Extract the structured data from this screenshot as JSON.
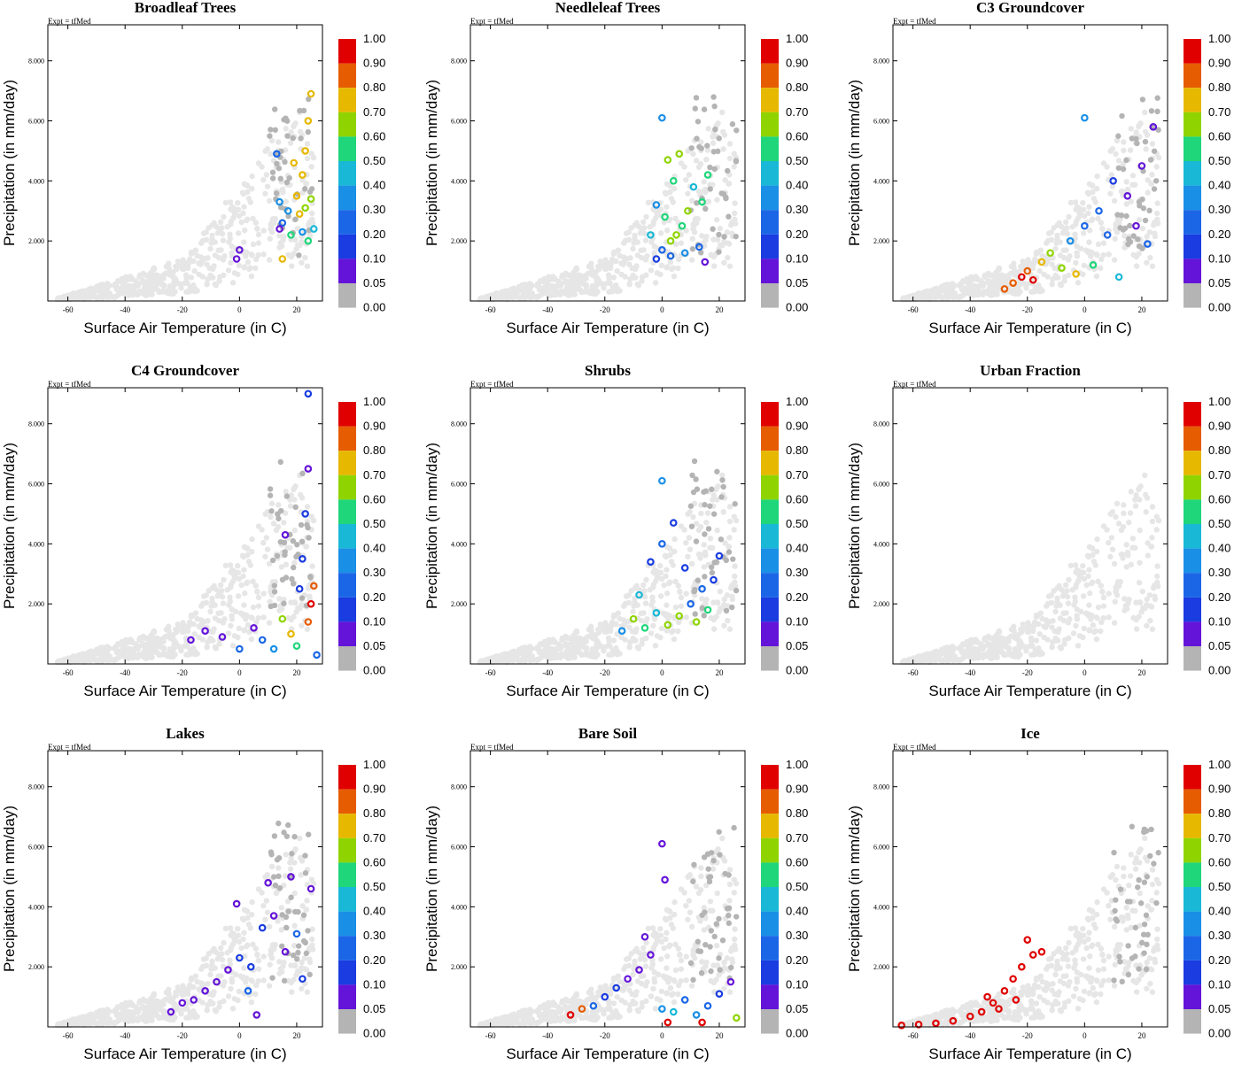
{
  "figure": {
    "expt_label": "Expt = tfMed",
    "xlabel": "Surface Air Temperature (in C)",
    "ylabel": "Precipitation (in mm/day)"
  },
  "colorbar": {
    "labels": [
      "1.00",
      "0.90",
      "0.80",
      "0.70",
      "0.60",
      "0.50",
      "0.40",
      "0.30",
      "0.20",
      "0.10",
      "0.05",
      "0.00"
    ],
    "colors": [
      "#e00000",
      "#e65c00",
      "#e6b800",
      "#8fd400",
      "#1fd67a",
      "#19b8d6",
      "#198fe6",
      "#1a66e6",
      "#1a3ce0",
      "#6414d8",
      "#b4b4b4"
    ]
  },
  "colors": {
    "background_points": "#e6e6e6",
    "zero_points": "#b4b4b4",
    "frame": "#000000"
  },
  "chart_data": [
    {
      "type": "scatter",
      "title": "Broadleaf Trees",
      "xlim": [
        -67,
        29
      ],
      "ylim": [
        0,
        9.2
      ],
      "xticks": [
        -60,
        -40,
        -20,
        0,
        20
      ],
      "yticks": [
        "2.000",
        "4.000",
        "6.000",
        "8.000"
      ],
      "colored_points": [
        {
          "x": 20,
          "y": 3.5,
          "v": 0.8
        },
        {
          "x": 22,
          "y": 4.2,
          "v": 0.8
        },
        {
          "x": 23,
          "y": 5.0,
          "v": 0.8
        },
        {
          "x": 24,
          "y": 6.0,
          "v": 0.8
        },
        {
          "x": 25,
          "y": 6.9,
          "v": 0.8
        },
        {
          "x": 21,
          "y": 2.9,
          "v": 0.8
        },
        {
          "x": 19,
          "y": 4.6,
          "v": 0.8
        },
        {
          "x": 23,
          "y": 3.1,
          "v": 0.7
        },
        {
          "x": 25,
          "y": 3.4,
          "v": 0.7
        },
        {
          "x": 17,
          "y": 3.0,
          "v": 0.4
        },
        {
          "x": 14,
          "y": 3.3,
          "v": 0.4
        },
        {
          "x": 22,
          "y": 2.3,
          "v": 0.4
        },
        {
          "x": 26,
          "y": 2.4,
          "v": 0.5
        },
        {
          "x": 15,
          "y": 2.6,
          "v": 0.2
        },
        {
          "x": 13,
          "y": 4.9,
          "v": 0.2
        },
        {
          "x": 18,
          "y": 2.2,
          "v": 0.6
        },
        {
          "x": 24,
          "y": 2.0,
          "v": 0.6
        },
        {
          "x": 14,
          "y": 2.4,
          "v": 0.05
        },
        {
          "x": 0,
          "y": 1.7,
          "v": 0.05
        },
        {
          "x": -1,
          "y": 1.4,
          "v": 0.05
        },
        {
          "x": 15,
          "y": 1.4,
          "v": 0.8
        }
      ]
    },
    {
      "type": "scatter",
      "title": "Needleleaf Trees",
      "xlim": [
        -67,
        29
      ],
      "ylim": [
        0,
        9.2
      ],
      "xticks": [
        -60,
        -40,
        -20,
        0,
        20
      ],
      "yticks": [
        "2.000",
        "4.000",
        "6.000",
        "8.000"
      ],
      "colored_points": [
        {
          "x": 5,
          "y": 2.2,
          "v": 0.7
        },
        {
          "x": 3,
          "y": 2.0,
          "v": 0.7
        },
        {
          "x": 7,
          "y": 2.5,
          "v": 0.6
        },
        {
          "x": 1,
          "y": 2.8,
          "v": 0.6
        },
        {
          "x": 9,
          "y": 3.0,
          "v": 0.7
        },
        {
          "x": 4,
          "y": 4.0,
          "v": 0.6
        },
        {
          "x": 2,
          "y": 4.7,
          "v": 0.7
        },
        {
          "x": 6,
          "y": 4.9,
          "v": 0.7
        },
        {
          "x": 11,
          "y": 3.8,
          "v": 0.5
        },
        {
          "x": 14,
          "y": 3.3,
          "v": 0.6
        },
        {
          "x": -2,
          "y": 3.2,
          "v": 0.4
        },
        {
          "x": -4,
          "y": 2.2,
          "v": 0.5
        },
        {
          "x": 0,
          "y": 1.7,
          "v": 0.3
        },
        {
          "x": 3,
          "y": 1.5,
          "v": 0.2
        },
        {
          "x": -2,
          "y": 1.4,
          "v": 0.1
        },
        {
          "x": 8,
          "y": 1.6,
          "v": 0.4
        },
        {
          "x": 13,
          "y": 1.8,
          "v": 0.3
        },
        {
          "x": 15,
          "y": 1.3,
          "v": 0.05
        },
        {
          "x": 0,
          "y": 6.1,
          "v": 0.4
        },
        {
          "x": 16,
          "y": 4.2,
          "v": 0.6
        }
      ]
    },
    {
      "type": "scatter",
      "title": "C3 Groundcover",
      "xlim": [
        -67,
        29
      ],
      "ylim": [
        0,
        9.2
      ],
      "xticks": [
        -60,
        -40,
        -20,
        0,
        20
      ],
      "yticks": [
        "2.000",
        "4.000",
        "6.000",
        "8.000"
      ],
      "colored_points": [
        {
          "x": -25,
          "y": 0.6,
          "v": 0.9
        },
        {
          "x": -22,
          "y": 0.8,
          "v": 1.0
        },
        {
          "x": -20,
          "y": 1.0,
          "v": 0.9
        },
        {
          "x": -18,
          "y": 0.7,
          "v": 1.0
        },
        {
          "x": -28,
          "y": 0.4,
          "v": 0.9
        },
        {
          "x": -15,
          "y": 1.3,
          "v": 0.8
        },
        {
          "x": -12,
          "y": 1.6,
          "v": 0.7
        },
        {
          "x": -8,
          "y": 1.1,
          "v": 0.7
        },
        {
          "x": -5,
          "y": 2.0,
          "v": 0.4
        },
        {
          "x": 0,
          "y": 2.5,
          "v": 0.3
        },
        {
          "x": 3,
          "y": 1.2,
          "v": 0.6
        },
        {
          "x": 5,
          "y": 3.0,
          "v": 0.2
        },
        {
          "x": 8,
          "y": 2.2,
          "v": 0.2
        },
        {
          "x": 10,
          "y": 4.0,
          "v": 0.1
        },
        {
          "x": 15,
          "y": 3.5,
          "v": 0.05
        },
        {
          "x": 18,
          "y": 2.5,
          "v": 0.05
        },
        {
          "x": 20,
          "y": 4.5,
          "v": 0.05
        },
        {
          "x": 22,
          "y": 1.9,
          "v": 0.2
        },
        {
          "x": 12,
          "y": 0.8,
          "v": 0.5
        },
        {
          "x": -3,
          "y": 0.9,
          "v": 0.8
        },
        {
          "x": 0,
          "y": 6.1,
          "v": 0.4
        },
        {
          "x": 24,
          "y": 5.8,
          "v": 0.05
        }
      ]
    },
    {
      "type": "scatter",
      "title": "C4 Groundcover",
      "xlim": [
        -67,
        29
      ],
      "ylim": [
        0,
        9.2
      ],
      "xticks": [
        -60,
        -40,
        -20,
        0,
        20
      ],
      "yticks": [
        "2.000",
        "4.000",
        "6.000",
        "8.000"
      ],
      "colored_points": [
        {
          "x": 22,
          "y": 3.5,
          "v": 0.1
        },
        {
          "x": 23,
          "y": 5.0,
          "v": 0.1
        },
        {
          "x": 24,
          "y": 6.5,
          "v": 0.05
        },
        {
          "x": 21,
          "y": 2.5,
          "v": 0.1
        },
        {
          "x": 25,
          "y": 2.0,
          "v": 1.0
        },
        {
          "x": 26,
          "y": 2.6,
          "v": 0.9
        },
        {
          "x": 24,
          "y": 1.4,
          "v": 0.9
        },
        {
          "x": 18,
          "y": 1.0,
          "v": 0.8
        },
        {
          "x": 15,
          "y": 1.5,
          "v": 0.7
        },
        {
          "x": 20,
          "y": 0.6,
          "v": 0.6
        },
        {
          "x": 12,
          "y": 0.5,
          "v": 0.4
        },
        {
          "x": 8,
          "y": 0.8,
          "v": 0.2
        },
        {
          "x": 5,
          "y": 1.2,
          "v": 0.05
        },
        {
          "x": 0,
          "y": 0.5,
          "v": 0.2
        },
        {
          "x": -6,
          "y": 0.9,
          "v": 0.05
        },
        {
          "x": -12,
          "y": 1.1,
          "v": 0.05
        },
        {
          "x": -17,
          "y": 0.8,
          "v": 0.05
        },
        {
          "x": 16,
          "y": 4.3,
          "v": 0.05
        },
        {
          "x": 27,
          "y": 0.3,
          "v": 0.2
        },
        {
          "x": 24,
          "y": 9.0,
          "v": 0.1
        }
      ]
    },
    {
      "type": "scatter",
      "title": "Shrubs",
      "xlim": [
        -67,
        29
      ],
      "ylim": [
        0,
        9.2
      ],
      "xticks": [
        -60,
        -40,
        -20,
        0,
        20
      ],
      "yticks": [
        "2.000",
        "4.000",
        "6.000",
        "8.000"
      ],
      "colored_points": [
        {
          "x": -10,
          "y": 1.5,
          "v": 0.7
        },
        {
          "x": -6,
          "y": 1.2,
          "v": 0.6
        },
        {
          "x": -2,
          "y": 1.7,
          "v": 0.5
        },
        {
          "x": -14,
          "y": 1.1,
          "v": 0.4
        },
        {
          "x": 2,
          "y": 1.3,
          "v": 0.7
        },
        {
          "x": 6,
          "y": 1.6,
          "v": 0.7
        },
        {
          "x": 10,
          "y": 2.0,
          "v": 0.3
        },
        {
          "x": 14,
          "y": 2.5,
          "v": 0.2
        },
        {
          "x": 18,
          "y": 2.8,
          "v": 0.1
        },
        {
          "x": 20,
          "y": 3.6,
          "v": 0.1
        },
        {
          "x": 8,
          "y": 3.2,
          "v": 0.1
        },
        {
          "x": 0,
          "y": 4.0,
          "v": 0.2
        },
        {
          "x": -4,
          "y": 3.4,
          "v": 0.1
        },
        {
          "x": 4,
          "y": 4.7,
          "v": 0.1
        },
        {
          "x": 0,
          "y": 6.1,
          "v": 0.4
        },
        {
          "x": 12,
          "y": 1.4,
          "v": 0.7
        },
        {
          "x": 16,
          "y": 1.8,
          "v": 0.6
        },
        {
          "x": -8,
          "y": 2.3,
          "v": 0.5
        }
      ]
    },
    {
      "type": "scatter",
      "title": "Urban Fraction",
      "xlim": [
        -67,
        29
      ],
      "ylim": [
        0,
        9.2
      ],
      "xticks": [
        -60,
        -40,
        -20,
        0,
        20
      ],
      "yticks": [
        "2.000",
        "4.000",
        "6.000",
        "8.000"
      ],
      "colored_points": []
    },
    {
      "type": "scatter",
      "title": "Lakes",
      "xlim": [
        -67,
        29
      ],
      "ylim": [
        0,
        9.2
      ],
      "xticks": [
        -60,
        -40,
        -20,
        0,
        20
      ],
      "yticks": [
        "2.000",
        "4.000",
        "6.000",
        "8.000"
      ],
      "colored_points": [
        {
          "x": -24,
          "y": 0.5,
          "v": 0.05
        },
        {
          "x": -20,
          "y": 0.8,
          "v": 0.05
        },
        {
          "x": -16,
          "y": 0.9,
          "v": 0.05
        },
        {
          "x": -12,
          "y": 1.2,
          "v": 0.05
        },
        {
          "x": -8,
          "y": 1.5,
          "v": 0.05
        },
        {
          "x": -4,
          "y": 1.9,
          "v": 0.05
        },
        {
          "x": 0,
          "y": 2.3,
          "v": 0.1
        },
        {
          "x": 4,
          "y": 2.0,
          "v": 0.1
        },
        {
          "x": 8,
          "y": 3.3,
          "v": 0.1
        },
        {
          "x": 12,
          "y": 3.7,
          "v": 0.05
        },
        {
          "x": 16,
          "y": 2.5,
          "v": 0.05
        },
        {
          "x": 20,
          "y": 3.1,
          "v": 0.2
        },
        {
          "x": 22,
          "y": 1.6,
          "v": 0.1
        },
        {
          "x": 25,
          "y": 4.6,
          "v": 0.05
        },
        {
          "x": -1,
          "y": 4.1,
          "v": 0.05
        },
        {
          "x": 10,
          "y": 4.8,
          "v": 0.05
        },
        {
          "x": 6,
          "y": 0.4,
          "v": 0.05
        },
        {
          "x": 18,
          "y": 5.0,
          "v": 0.05
        },
        {
          "x": 3,
          "y": 1.2,
          "v": 0.2
        }
      ]
    },
    {
      "type": "scatter",
      "title": "Bare Soil",
      "xlim": [
        -67,
        29
      ],
      "ylim": [
        0,
        9.2
      ],
      "xticks": [
        -60,
        -40,
        -20,
        0,
        20
      ],
      "yticks": [
        "2.000",
        "4.000",
        "6.000",
        "8.000"
      ],
      "colored_points": [
        {
          "x": -32,
          "y": 0.4,
          "v": 1.0
        },
        {
          "x": -28,
          "y": 0.6,
          "v": 0.9
        },
        {
          "x": -24,
          "y": 0.7,
          "v": 0.2
        },
        {
          "x": -20,
          "y": 1.0,
          "v": 0.1
        },
        {
          "x": -16,
          "y": 1.3,
          "v": 0.1
        },
        {
          "x": -12,
          "y": 1.6,
          "v": 0.05
        },
        {
          "x": -8,
          "y": 1.9,
          "v": 0.05
        },
        {
          "x": -4,
          "y": 2.4,
          "v": 0.05
        },
        {
          "x": 0,
          "y": 0.6,
          "v": 0.4
        },
        {
          "x": 4,
          "y": 0.5,
          "v": 0.5
        },
        {
          "x": 8,
          "y": 0.9,
          "v": 0.3
        },
        {
          "x": 12,
          "y": 0.4,
          "v": 0.4
        },
        {
          "x": 16,
          "y": 0.7,
          "v": 0.2
        },
        {
          "x": 20,
          "y": 1.1,
          "v": 0.1
        },
        {
          "x": 24,
          "y": 1.5,
          "v": 0.05
        },
        {
          "x": 26,
          "y": 0.3,
          "v": 0.7
        },
        {
          "x": 2,
          "y": 0.15,
          "v": 1.0
        },
        {
          "x": 14,
          "y": 0.15,
          "v": 1.0
        },
        {
          "x": 0,
          "y": 6.1,
          "v": 0.05
        },
        {
          "x": 1,
          "y": 4.9,
          "v": 0.05
        },
        {
          "x": -6,
          "y": 3.0,
          "v": 0.05
        }
      ]
    },
    {
      "type": "scatter",
      "title": "Ice",
      "xlim": [
        -67,
        29
      ],
      "ylim": [
        0,
        9.2
      ],
      "xticks": [
        -60,
        -40,
        -20,
        0,
        20
      ],
      "yticks": [
        "2.000",
        "4.000",
        "6.000",
        "8.000"
      ],
      "colored_points": [
        {
          "x": -64,
          "y": 0.05,
          "v": 1.0
        },
        {
          "x": -58,
          "y": 0.08,
          "v": 1.0
        },
        {
          "x": -52,
          "y": 0.12,
          "v": 1.0
        },
        {
          "x": -46,
          "y": 0.2,
          "v": 1.0
        },
        {
          "x": -40,
          "y": 0.35,
          "v": 1.0
        },
        {
          "x": -36,
          "y": 0.5,
          "v": 1.0
        },
        {
          "x": -32,
          "y": 0.8,
          "v": 1.0
        },
        {
          "x": -28,
          "y": 1.2,
          "v": 1.0
        },
        {
          "x": -25,
          "y": 1.6,
          "v": 1.0
        },
        {
          "x": -22,
          "y": 2.0,
          "v": 1.0
        },
        {
          "x": -20,
          "y": 2.9,
          "v": 1.0
        },
        {
          "x": -18,
          "y": 2.4,
          "v": 1.0
        },
        {
          "x": -15,
          "y": 2.5,
          "v": 1.0
        },
        {
          "x": -30,
          "y": 0.6,
          "v": 1.0
        },
        {
          "x": -24,
          "y": 0.9,
          "v": 1.0
        },
        {
          "x": -34,
          "y": 1.0,
          "v": 1.0
        }
      ]
    }
  ]
}
